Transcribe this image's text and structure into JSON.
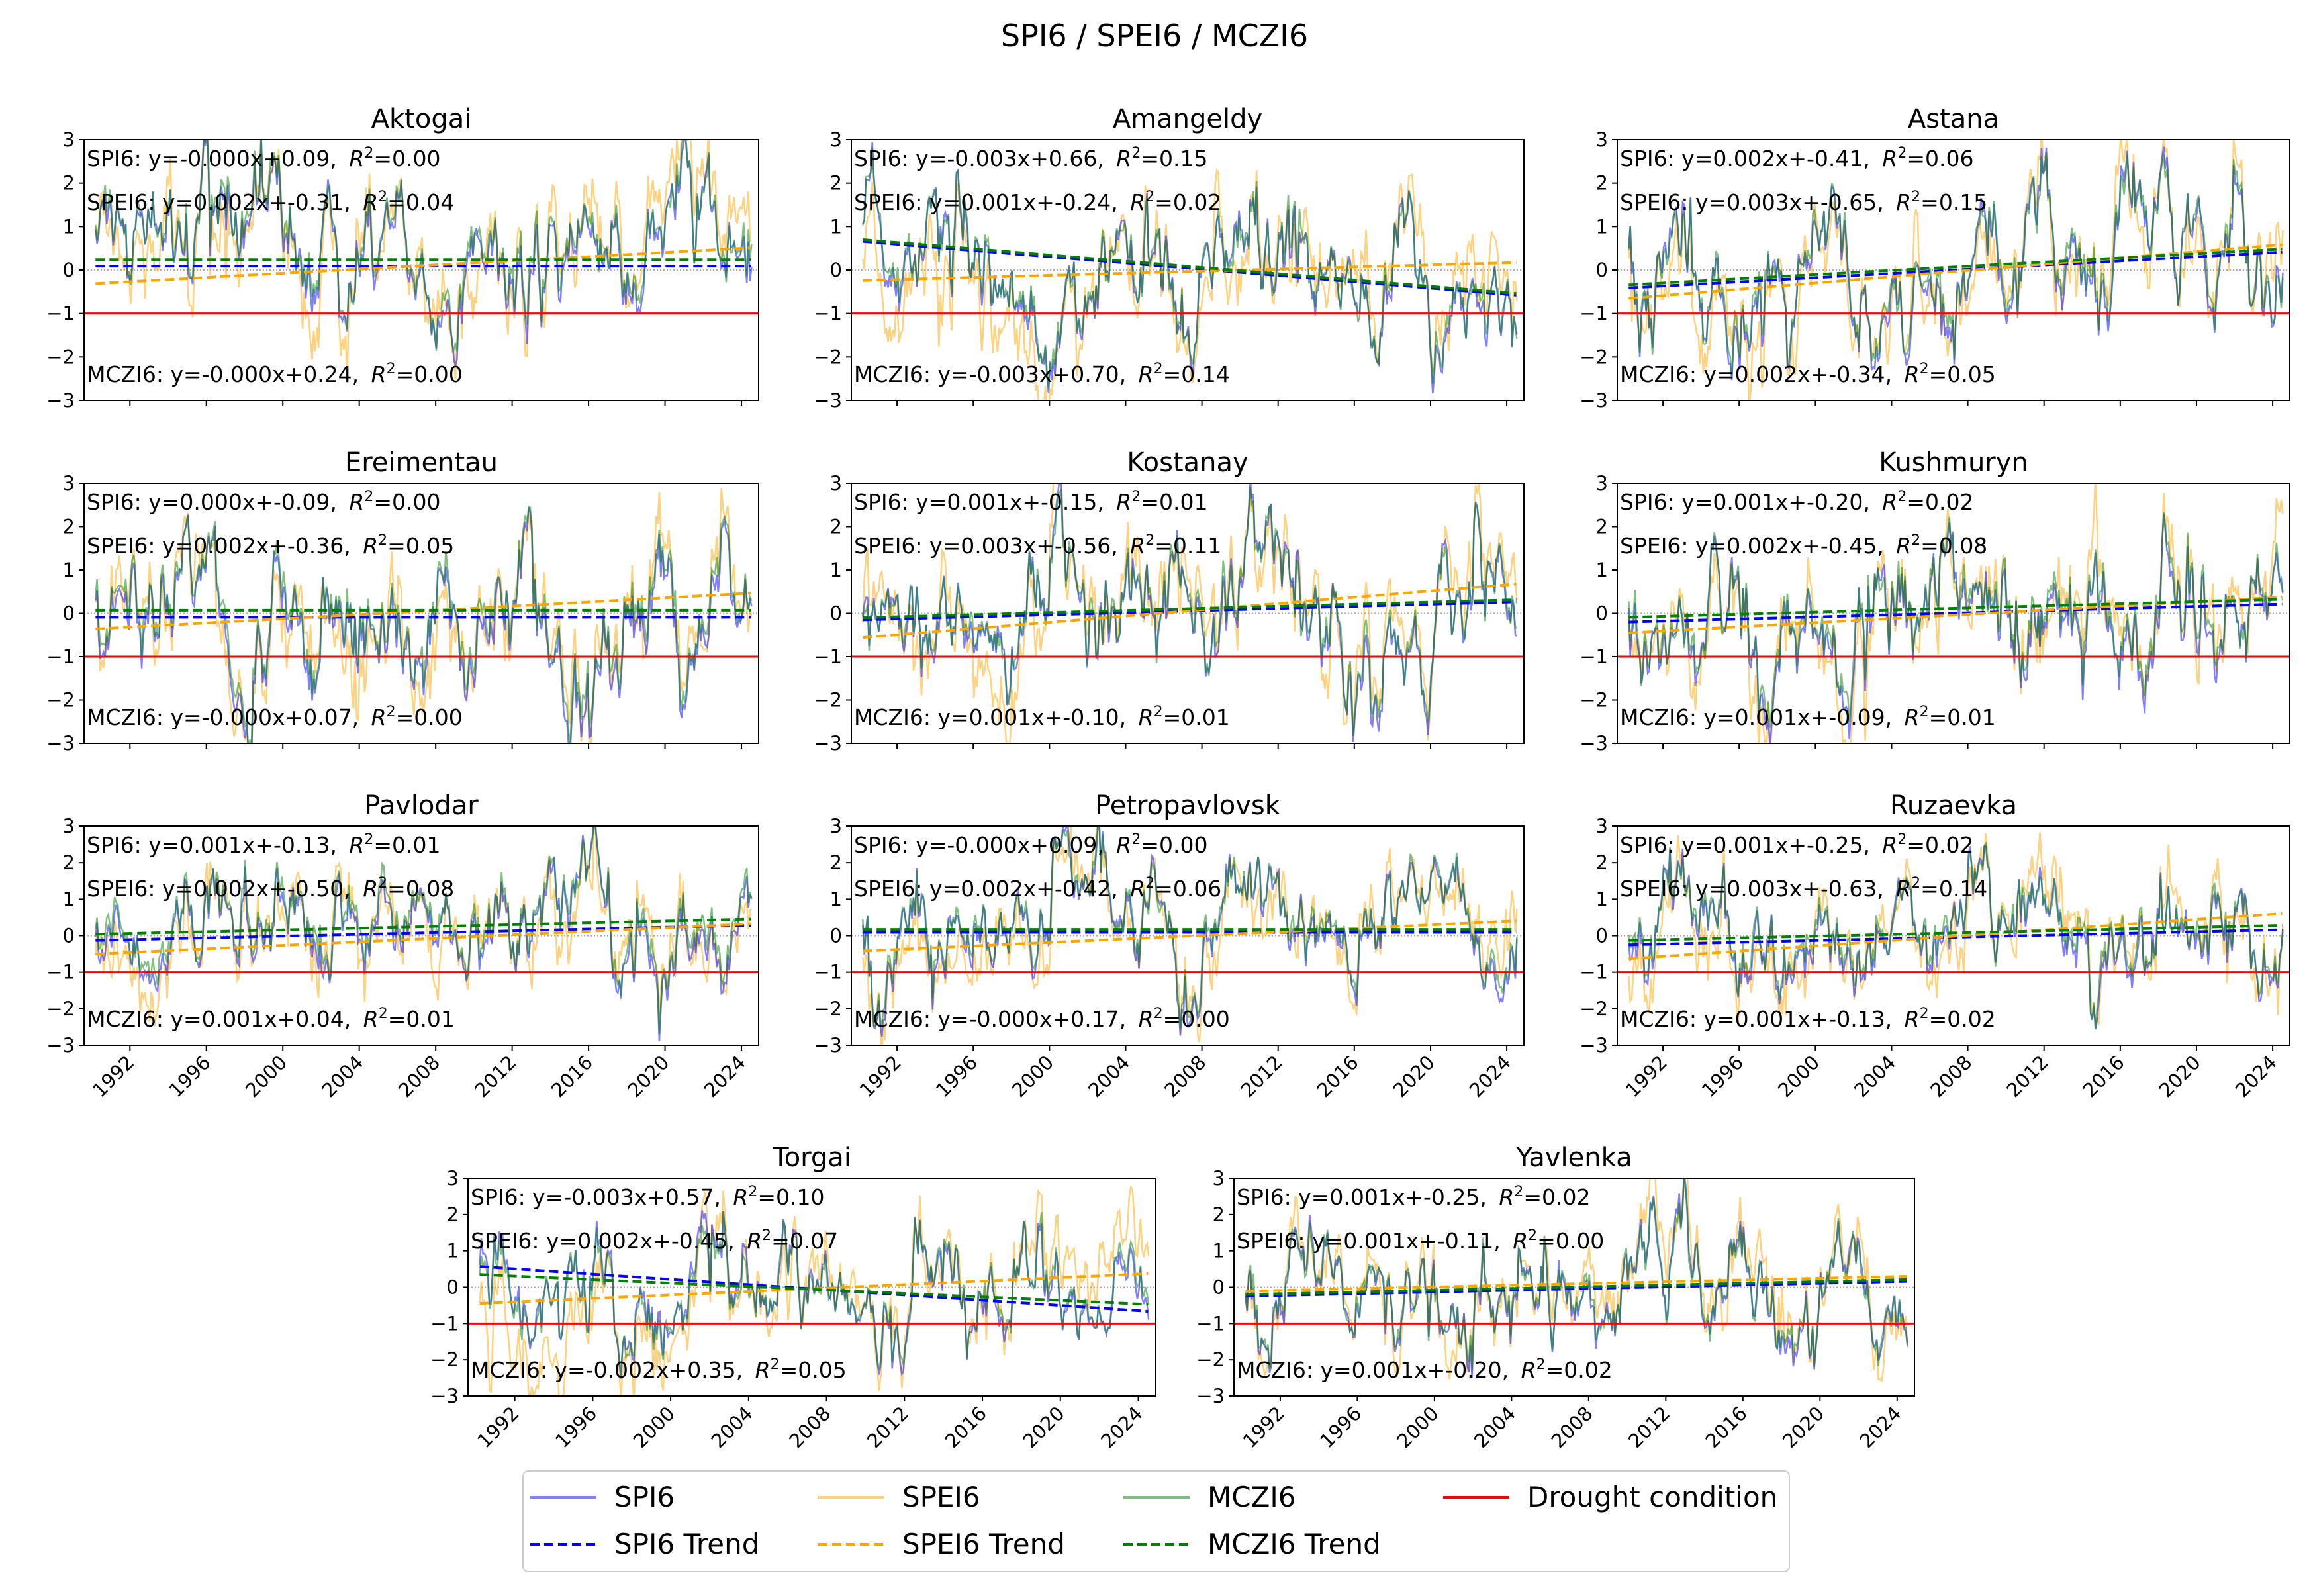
{
  "chart_data": {
    "type": "line",
    "title": "SPI6 / SPEI6 / MCZI6",
    "ylim": [
      -3,
      3
    ],
    "yticks": [
      "3",
      "2",
      "1",
      "0",
      "-1",
      "-2",
      "-3"
    ],
    "xticks": [
      "1992",
      "1996",
      "2000",
      "2004",
      "2008",
      "2012",
      "2016",
      "2020",
      "2024"
    ],
    "xlim_years": [
      1989.6,
      2024.9
    ],
    "data_years": [
      1990.2,
      2024.5
    ],
    "drought_threshold": -1,
    "colors": {
      "SPI6": "#0000ff",
      "SPEI6": "#ffa500",
      "MCZI6": "#008000",
      "drought": "#ff0000"
    },
    "legend": {
      "placement": "bottom-center",
      "entries": [
        "SPI6",
        "SPEI6",
        "MCZI6",
        "Drought condition",
        "SPI6 Trend",
        "SPEI6 Trend",
        "MCZI6 Trend"
      ]
    },
    "subplots": [
      {
        "name": "Aktogai",
        "trends": [
          {
            "index": "SPI6",
            "text": "SPI6: y=-0.000x+0.09, ",
            "slope": -0.0,
            "intercept": 0.09,
            "r2": "0.00"
          },
          {
            "index": "SPEI6",
            "text": "SPEI6: y=0.002x+-0.31, ",
            "slope": 0.002,
            "intercept": -0.31,
            "r2": "0.04"
          },
          {
            "index": "MCZI6",
            "text": "MCZI6: y=-0.000x+0.24, ",
            "slope": -0.0,
            "intercept": 0.24,
            "r2": "0.00"
          }
        ]
      },
      {
        "name": "Amangeldy",
        "trends": [
          {
            "index": "SPI6",
            "text": "SPI6: y=-0.003x+0.66, ",
            "slope": -0.003,
            "intercept": 0.66,
            "r2": "0.15"
          },
          {
            "index": "SPEI6",
            "text": "SPEI6: y=0.001x+-0.24, ",
            "slope": 0.001,
            "intercept": -0.24,
            "r2": "0.02"
          },
          {
            "index": "MCZI6",
            "text": "MCZI6: y=-0.003x+0.70, ",
            "slope": -0.003,
            "intercept": 0.7,
            "r2": "0.14"
          }
        ]
      },
      {
        "name": "Astana",
        "trends": [
          {
            "index": "SPI6",
            "text": "SPI6: y=0.002x+-0.41, ",
            "slope": 0.002,
            "intercept": -0.41,
            "r2": "0.06"
          },
          {
            "index": "SPEI6",
            "text": "SPEI6: y=0.003x+-0.65, ",
            "slope": 0.003,
            "intercept": -0.65,
            "r2": "0.15"
          },
          {
            "index": "MCZI6",
            "text": "MCZI6: y=0.002x+-0.34, ",
            "slope": 0.002,
            "intercept": -0.34,
            "r2": "0.05"
          }
        ]
      },
      {
        "name": "Ereimentau",
        "trends": [
          {
            "index": "SPI6",
            "text": "SPI6: y=0.000x+-0.09, ",
            "slope": 0.0,
            "intercept": -0.09,
            "r2": "0.00"
          },
          {
            "index": "SPEI6",
            "text": "SPEI6: y=0.002x+-0.36, ",
            "slope": 0.002,
            "intercept": -0.36,
            "r2": "0.05"
          },
          {
            "index": "MCZI6",
            "text": "MCZI6: y=-0.000x+0.07, ",
            "slope": -0.0,
            "intercept": 0.07,
            "r2": "0.00"
          }
        ]
      },
      {
        "name": "Kostanay",
        "trends": [
          {
            "index": "SPI6",
            "text": "SPI6: y=0.001x+-0.15, ",
            "slope": 0.001,
            "intercept": -0.15,
            "r2": "0.01"
          },
          {
            "index": "SPEI6",
            "text": "SPEI6: y=0.003x+-0.56, ",
            "slope": 0.003,
            "intercept": -0.56,
            "r2": "0.11"
          },
          {
            "index": "MCZI6",
            "text": "MCZI6: y=0.001x+-0.10, ",
            "slope": 0.001,
            "intercept": -0.1,
            "r2": "0.01"
          }
        ]
      },
      {
        "name": "Kushmuryn",
        "trends": [
          {
            "index": "SPI6",
            "text": "SPI6: y=0.001x+-0.20, ",
            "slope": 0.001,
            "intercept": -0.2,
            "r2": "0.02"
          },
          {
            "index": "SPEI6",
            "text": "SPEI6: y=0.002x+-0.45, ",
            "slope": 0.002,
            "intercept": -0.45,
            "r2": "0.08"
          },
          {
            "index": "MCZI6",
            "text": "MCZI6: y=0.001x+-0.09, ",
            "slope": 0.001,
            "intercept": -0.09,
            "r2": "0.01"
          }
        ]
      },
      {
        "name": "Pavlodar",
        "trends": [
          {
            "index": "SPI6",
            "text": "SPI6: y=0.001x+-0.13, ",
            "slope": 0.001,
            "intercept": -0.13,
            "r2": "0.01"
          },
          {
            "index": "SPEI6",
            "text": "SPEI6: y=0.002x+-0.50, ",
            "slope": 0.002,
            "intercept": -0.5,
            "r2": "0.08"
          },
          {
            "index": "MCZI6",
            "text": "MCZI6: y=0.001x+0.04, ",
            "slope": 0.001,
            "intercept": 0.04,
            "r2": "0.01"
          }
        ]
      },
      {
        "name": "Petropavlovsk",
        "trends": [
          {
            "index": "SPI6",
            "text": "SPI6: y=-0.000x+0.09, ",
            "slope": -0.0,
            "intercept": 0.09,
            "r2": "0.00"
          },
          {
            "index": "SPEI6",
            "text": "SPEI6: y=0.002x+-0.42, ",
            "slope": 0.002,
            "intercept": -0.42,
            "r2": "0.06"
          },
          {
            "index": "MCZI6",
            "text": "MCZI6: y=-0.000x+0.17, ",
            "slope": -0.0,
            "intercept": 0.17,
            "r2": "0.00"
          }
        ]
      },
      {
        "name": "Ruzaevka",
        "trends": [
          {
            "index": "SPI6",
            "text": "SPI6: y=0.001x+-0.25, ",
            "slope": 0.001,
            "intercept": -0.25,
            "r2": "0.02"
          },
          {
            "index": "SPEI6",
            "text": "SPEI6: y=0.003x+-0.63, ",
            "slope": 0.003,
            "intercept": -0.63,
            "r2": "0.14"
          },
          {
            "index": "MCZI6",
            "text": "MCZI6: y=0.001x+-0.13, ",
            "slope": 0.001,
            "intercept": -0.13,
            "r2": "0.02"
          }
        ]
      },
      {
        "name": "Torgai",
        "trends": [
          {
            "index": "SPI6",
            "text": "SPI6: y=-0.003x+0.57, ",
            "slope": -0.003,
            "intercept": 0.57,
            "r2": "0.10"
          },
          {
            "index": "SPEI6",
            "text": "SPEI6: y=0.002x+-0.45, ",
            "slope": 0.002,
            "intercept": -0.45,
            "r2": "0.07"
          },
          {
            "index": "MCZI6",
            "text": "MCZI6: y=-0.002x+0.35, ",
            "slope": -0.002,
            "intercept": 0.35,
            "r2": "0.05"
          }
        ]
      },
      {
        "name": "Yavlenka",
        "trends": [
          {
            "index": "SPI6",
            "text": "SPI6: y=0.001x+-0.25, ",
            "slope": 0.001,
            "intercept": -0.25,
            "r2": "0.02"
          },
          {
            "index": "SPEI6",
            "text": "SPEI6: y=0.001x+-0.11, ",
            "slope": 0.001,
            "intercept": -0.11,
            "r2": "0.00"
          },
          {
            "index": "MCZI6",
            "text": "MCZI6: y=0.001x+-0.20, ",
            "slope": 0.001,
            "intercept": -0.2,
            "r2": "0.02"
          }
        ]
      }
    ]
  }
}
